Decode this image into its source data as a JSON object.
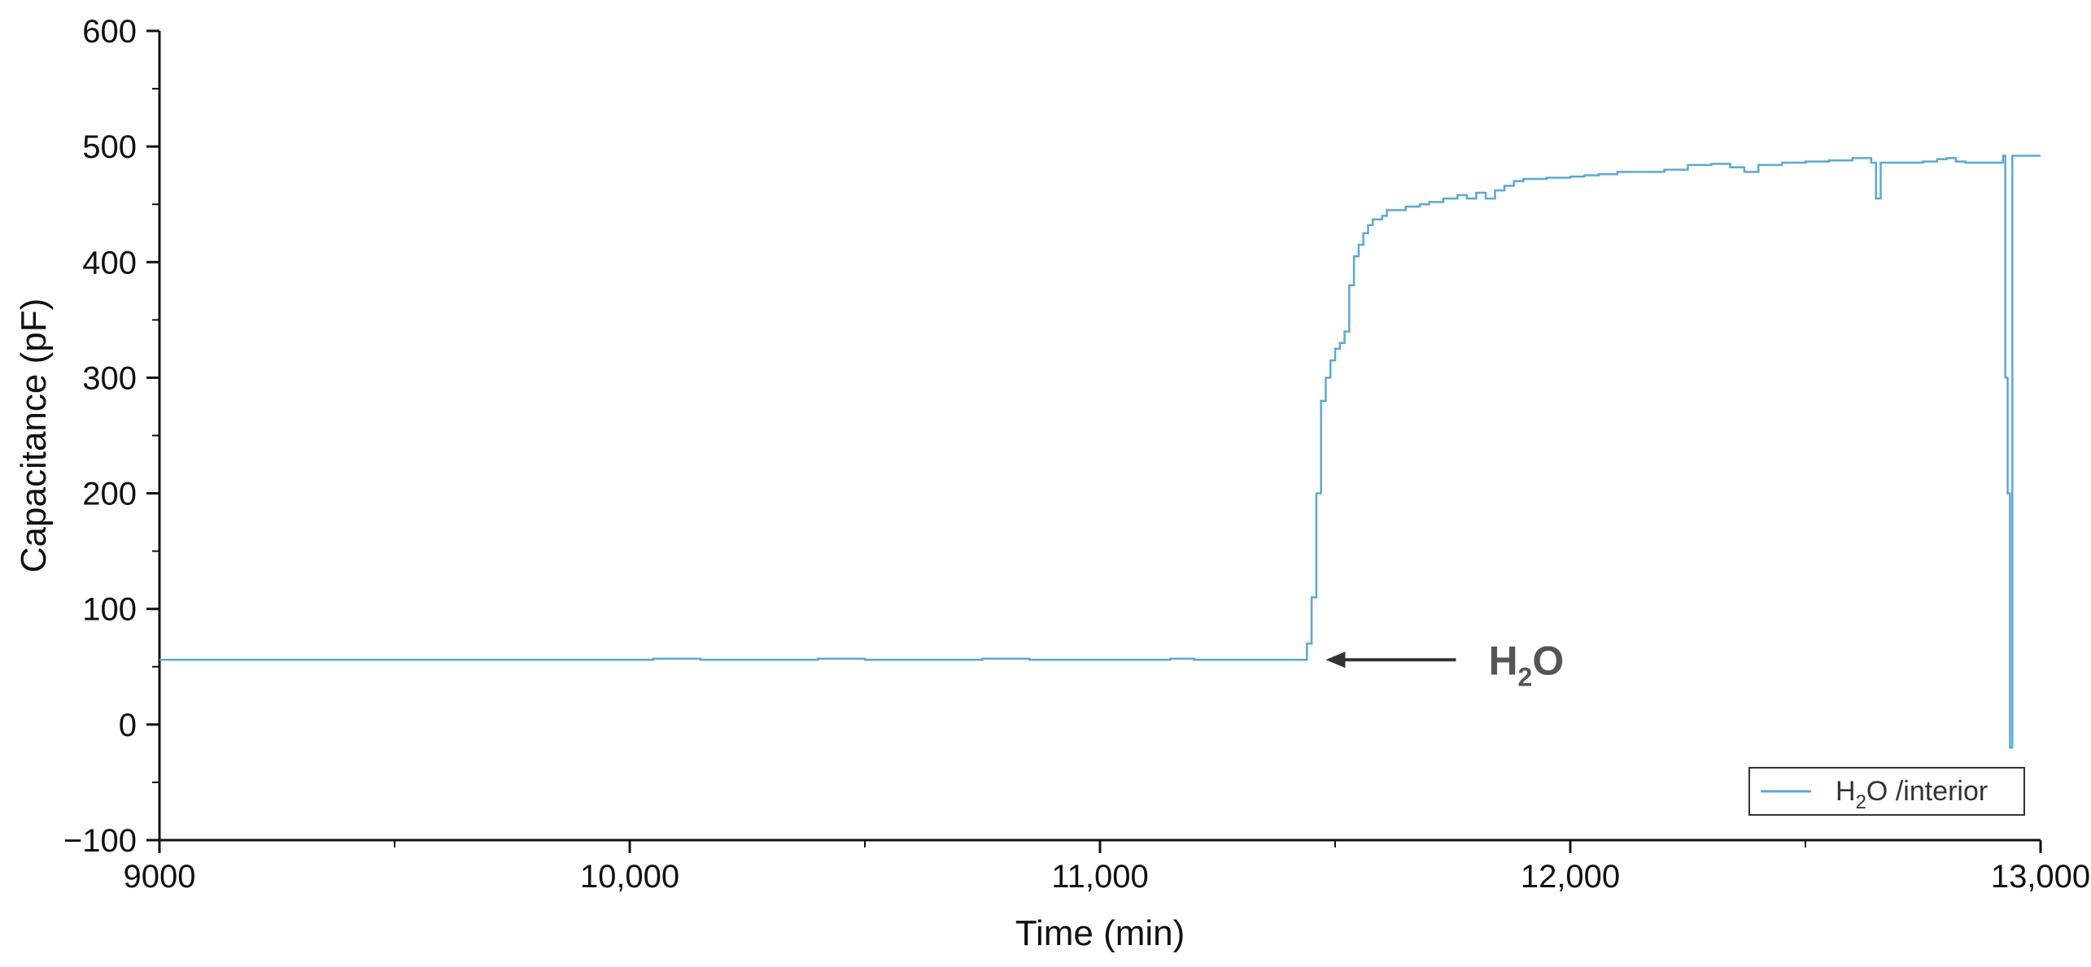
{
  "chart_data": {
    "type": "line",
    "xlabel": "Time (min)",
    "ylabel": "Capacitance (pF)",
    "xlim": [
      9000,
      13000
    ],
    "ylim": [
      -100,
      600
    ],
    "x_ticks": [
      9000,
      10000,
      11000,
      12000,
      13000
    ],
    "x_tick_labels": [
      "9000",
      "10,000",
      "11,000",
      "12,000",
      "13,000"
    ],
    "y_ticks": [
      -100,
      0,
      100,
      200,
      300,
      400,
      500,
      600
    ],
    "y_tick_labels": [
      "−100",
      "0",
      "100",
      "200",
      "300",
      "400",
      "500",
      "600"
    ],
    "grid": false,
    "legend_position": "bottom-right",
    "series": [
      {
        "name": "H2O /interior",
        "legend_parts": {
          "main": "H",
          "sub": "2",
          "rest": "O  /interior"
        },
        "color": "#5aa9d6",
        "x": [
          9000,
          9500,
          10000,
          10050,
          10150,
          10400,
          10500,
          10750,
          10850,
          11000,
          11150,
          11200,
          11400,
          11430,
          11440,
          11450,
          11460,
          11470,
          11480,
          11490,
          11500,
          11510,
          11520,
          11530,
          11540,
          11550,
          11560,
          11570,
          11580,
          11590,
          11600,
          11610,
          11620,
          11650,
          11680,
          11700,
          11730,
          11760,
          11780,
          11800,
          11820,
          11840,
          11860,
          11880,
          11900,
          11950,
          12000,
          12030,
          12060,
          12100,
          12150,
          12200,
          12250,
          12300,
          12340,
          12370,
          12400,
          12450,
          12500,
          12550,
          12600,
          12640,
          12650,
          12660,
          12700,
          12750,
          12780,
          12800,
          12820,
          12840,
          12900,
          12920,
          12925,
          12930,
          12935,
          12940,
          13000
        ],
        "y": [
          56,
          56,
          56,
          57,
          56,
          57,
          56,
          57,
          56,
          56,
          57,
          56,
          56,
          56,
          70,
          110,
          200,
          280,
          300,
          315,
          325,
          330,
          340,
          380,
          405,
          415,
          425,
          432,
          437,
          437,
          440,
          445,
          445,
          448,
          450,
          452,
          455,
          458,
          455,
          460,
          455,
          462,
          466,
          470,
          472,
          473,
          474,
          475,
          476,
          478,
          478,
          480,
          484,
          485,
          482,
          478,
          484,
          486,
          487,
          488,
          490,
          486,
          455,
          486,
          486,
          487,
          489,
          490,
          487,
          486,
          486,
          492,
          300,
          200,
          -20,
          492,
          492
        ]
      }
    ],
    "annotation": {
      "text_main": "H",
      "text_sub": "2",
      "text_rest": "O",
      "x": 11480,
      "y": 56,
      "arrow_color": "#333333"
    }
  }
}
